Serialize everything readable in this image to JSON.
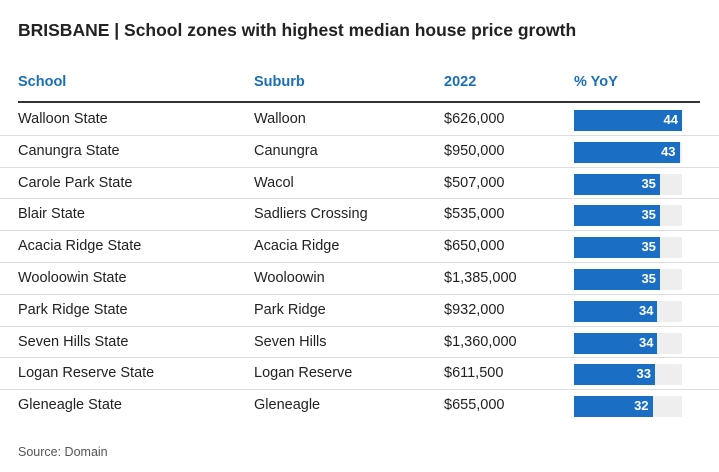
{
  "chart_data": {
    "type": "table",
    "title": "BRISBANE | School zones with highest median house price growth",
    "columns": [
      "School",
      "Suburb",
      "2022",
      "% YoY"
    ],
    "bar_max": 44,
    "rows": [
      {
        "school": "Walloon State",
        "suburb": "Walloon",
        "price": "$626,000",
        "yoy": 44
      },
      {
        "school": "Canungra State",
        "suburb": "Canungra",
        "price": "$950,000",
        "yoy": 43
      },
      {
        "school": "Carole Park State",
        "suburb": "Wacol",
        "price": "$507,000",
        "yoy": 35
      },
      {
        "school": "Blair State",
        "suburb": "Sadliers Crossing",
        "price": "$535,000",
        "yoy": 35
      },
      {
        "school": "Acacia Ridge State",
        "suburb": "Acacia Ridge",
        "price": "$650,000",
        "yoy": 35
      },
      {
        "school": "Wooloowin State",
        "suburb": "Wooloowin",
        "price": "$1,385,000",
        "yoy": 35
      },
      {
        "school": "Park Ridge State",
        "suburb": "Park Ridge",
        "price": "$932,000",
        "yoy": 34
      },
      {
        "school": "Seven Hills State",
        "suburb": "Seven Hills",
        "price": "$1,360,000",
        "yoy": 34
      },
      {
        "school": "Logan Reserve State",
        "suburb": "Logan Reserve",
        "price": "$611,500",
        "yoy": 33
      },
      {
        "school": "Gleneagle State",
        "suburb": "Gleneagle",
        "price": "$655,000",
        "yoy": 32
      }
    ],
    "source": "Source: Domain"
  },
  "colors": {
    "accent": "#1a6fb5",
    "bar": "#1a6fc4",
    "track": "#eeeeee"
  }
}
